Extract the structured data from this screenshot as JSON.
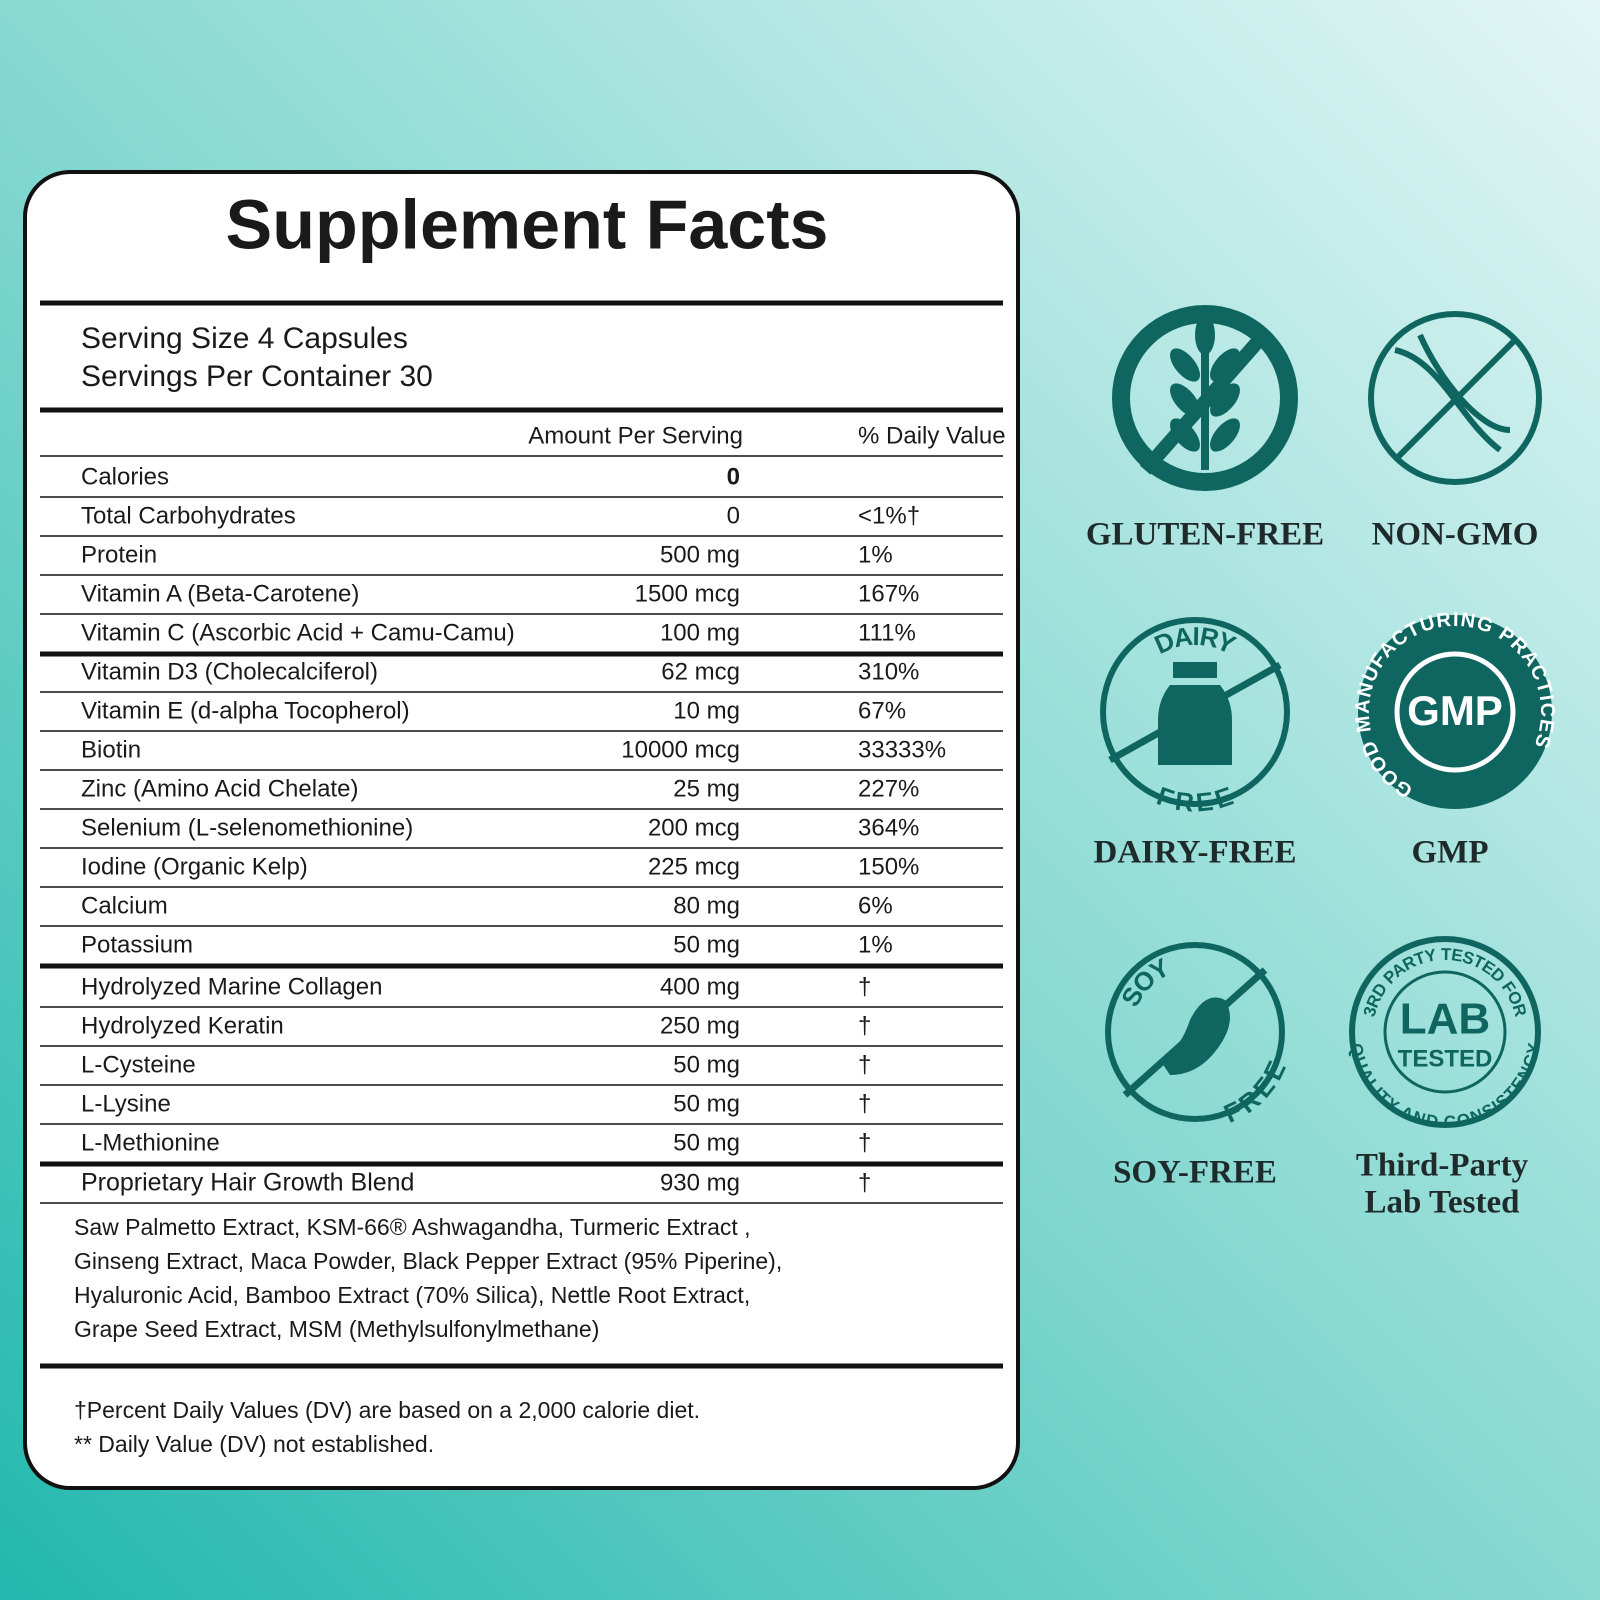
{
  "title": "Supplement Facts",
  "serving": [
    "Serving Size 4  Capsules",
    "Servings Per Container 30"
  ],
  "table": {
    "header": [
      "Amount Per Serving",
      "% Daily Value"
    ],
    "rows": [
      [
        "Calories",
        "0"
      ],
      [
        "Total Carbohydrates",
        "0",
        "<1%†"
      ],
      [
        "Protein",
        "500 mg",
        "1%"
      ],
      [
        "Vitamin A (Beta-Carotene)",
        "1500 mcg",
        "167%"
      ],
      [
        "Vitamin C (Ascorbic Acid + Camu-Camu)",
        "100 mg",
        "111%"
      ],
      [
        "Vitamin D3 (Cholecalciferol)",
        "62 mcg",
        "310%"
      ],
      [
        "Vitamin E (d-alpha Tocopherol)",
        "10 mg",
        "67%"
      ],
      [
        "Biotin",
        "10000 mcg",
        "33333%"
      ],
      [
        "Zinc (Amino Acid Chelate)",
        "25 mg",
        "227%"
      ],
      [
        "Selenium (L-selenomethionine)",
        "200 mcg",
        "364%"
      ],
      [
        "Iodine (Organic Kelp)",
        "225 mcg",
        "150%"
      ],
      [
        "Calcium",
        "80 mg",
        "6%"
      ],
      [
        "Potassium",
        "50 mg",
        "1%"
      ],
      [
        "Hydrolyzed Marine Collagen",
        "400 mg",
        "†"
      ],
      [
        "Hydrolyzed Keratin",
        "250 mg",
        "†"
      ],
      [
        "L-Cysteine",
        "50 mg",
        "†"
      ],
      [
        "L-Lysine",
        "50 mg",
        "†"
      ],
      [
        "L-Methionine",
        "50 mg",
        "†"
      ],
      [
        "Proprietary Hair Growth Blend",
        "930 mg",
        "†"
      ]
    ]
  },
  "blend_ingredients": [
    "Saw Palmetto Extract, KSM-66® Ashwagandha, Turmeric Extract ,",
    "Ginseng Extract, Maca Powder, Black Pepper Extract (95% Piperine),",
    "Hyaluronic Acid, Bamboo Extract (70% Silica), Nettle Root Extract,",
    "Grape Seed Extract, MSM (Methylsulfonylmethane)"
  ],
  "footnotes": [
    "†Percent Daily Values (DV) are based on a 2,000 calorie diet.",
    "** Daily Value (DV) not established."
  ],
  "badges": [
    {
      "label": [
        "GLUTEN-FREE"
      ]
    },
    {
      "label": [
        "NON-GMO"
      ]
    },
    {
      "label": [
        "DAIRY-FREE"
      ],
      "icon_text": [
        "DAIRY",
        "FREE"
      ]
    },
    {
      "label": [
        "GMP"
      ],
      "icon_text": [
        "GMP",
        "GOOD MANUFACTURING PRACTICES"
      ]
    },
    {
      "label": [
        "SOY-FREE"
      ],
      "icon_text": [
        "SOY",
        "FREE"
      ]
    },
    {
      "label": [
        "Third-Party",
        "Lab Tested"
      ],
      "icon_text": [
        "3RD PARTY TESTED FOR",
        "LAB",
        "TESTED",
        "QUALITY AND CONSISTENCY"
      ]
    }
  ]
}
